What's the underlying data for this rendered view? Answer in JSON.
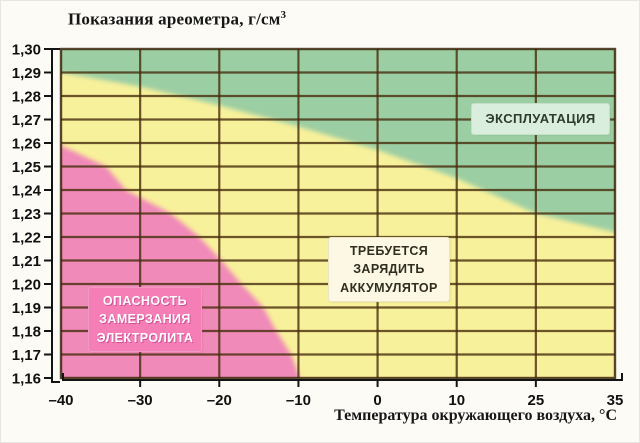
{
  "page": {
    "background": "#fcfbf6"
  },
  "chart_data": {
    "type": "area",
    "title": "Показания ареометра, г/см",
    "title_sup": "3",
    "xlabel": "Температура окружающего воздуха, °С",
    "x_ticks": [
      "–40",
      "–30",
      "–20",
      "–10",
      "0",
      "10",
      "25",
      "35"
    ],
    "x_tick_values": [
      -40,
      -30,
      -20,
      -10,
      0,
      10,
      25,
      35
    ],
    "y_ticks": [
      "1,30",
      "1,29",
      "1,28",
      "1,27",
      "1,26",
      "1,25",
      "1,24",
      "1,23",
      "1,22",
      "1,21",
      "1,20",
      "1,19",
      "1,18",
      "1,17",
      "1,16"
    ],
    "ylim": [
      1.16,
      1.3
    ],
    "xlim": [
      -40,
      35
    ],
    "grid": "on",
    "legend_position": "none",
    "regions": [
      {
        "id": "operation",
        "label": "ЭКСПЛУАТАЦИЯ",
        "color": "#9ccea3",
        "label_bg": "#d9eedd",
        "boundary_meaning": "lower edge of operation zone: hydrometer reading vs temperature",
        "boundary": [
          [
            -40,
            1.29
          ],
          [
            -30,
            1.284
          ],
          [
            -20,
            1.276
          ],
          [
            -10,
            1.267
          ],
          [
            0,
            1.257
          ],
          [
            10,
            1.245
          ],
          [
            25,
            1.23
          ],
          [
            35,
            1.222
          ]
        ]
      },
      {
        "id": "charge-required",
        "label": "ТРЕБУЕТСЯ ЗАРЯДИТЬ АККУМУЛЯТОР",
        "label_lines": [
          "ТРЕБУЕТСЯ",
          "ЗАРЯДИТЬ",
          "АККУМУЛЯТОР"
        ],
        "color": "#f8f19b",
        "label_bg": "#fcf8e4"
      },
      {
        "id": "electrolyte-freezing-danger",
        "label": "ОПАСНОСТЬ ЗАМЕРЗАНИЯ ЭЛЕКТРОЛИТА",
        "label_lines": [
          "ОПАСНОСТЬ",
          "ЗАМЕРЗАНИЯ",
          "ЭЛЕКТРОЛИТА"
        ],
        "color": "#f08ab8",
        "label_bg": "#f57eb7",
        "boundary_meaning": "upper edge of freezing-danger zone: hydrometer reading vs temperature",
        "boundary": [
          [
            -40,
            1.259
          ],
          [
            -34.3,
            1.25
          ],
          [
            -31.8,
            1.24
          ],
          [
            -26.1,
            1.23
          ],
          [
            -22.5,
            1.22
          ],
          [
            -19.7,
            1.21
          ],
          [
            -17.2,
            1.2
          ],
          [
            -14.4,
            1.19
          ],
          [
            -12.8,
            1.18
          ],
          [
            -10.9,
            1.17
          ],
          [
            -9.8,
            1.16
          ]
        ]
      }
    ],
    "colors": {
      "grid": "rgba(70,45,12,0.8)",
      "plot_border": "rgba(60,38,10,0.85)",
      "axis": "#141414",
      "tick_text": "#111111"
    }
  }
}
